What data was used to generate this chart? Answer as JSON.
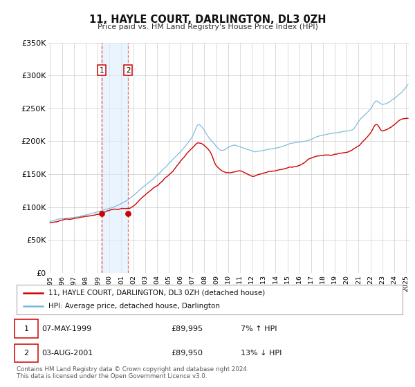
{
  "title": "11, HAYLE COURT, DARLINGTON, DL3 0ZH",
  "subtitle": "Price paid vs. HM Land Registry's House Price Index (HPI)",
  "ylim": [
    0,
    350000
  ],
  "yticks": [
    0,
    50000,
    100000,
    150000,
    200000,
    250000,
    300000,
    350000
  ],
  "ytick_labels": [
    "£0",
    "£50K",
    "£100K",
    "£150K",
    "£200K",
    "£250K",
    "£300K",
    "£350K"
  ],
  "xlim_start": 1994.8,
  "xlim_end": 2025.3,
  "xticks": [
    1995,
    1996,
    1997,
    1998,
    1999,
    2000,
    2001,
    2002,
    2003,
    2004,
    2005,
    2006,
    2007,
    2008,
    2009,
    2010,
    2011,
    2012,
    2013,
    2014,
    2015,
    2016,
    2017,
    2018,
    2019,
    2020,
    2021,
    2022,
    2023,
    2024,
    2025
  ],
  "sale1_date": 1999.35,
  "sale1_price": 89995,
  "sale2_date": 2001.58,
  "sale2_price": 89950,
  "hpi_color": "#7ab8d9",
  "property_color": "#cc0000",
  "shade_color": "#ddeeff",
  "grid_color": "#cccccc",
  "legend_label_property": "11, HAYLE COURT, DARLINGTON, DL3 0ZH (detached house)",
  "legend_label_hpi": "HPI: Average price, detached house, Darlington",
  "table_row1": [
    "1",
    "07-MAY-1999",
    "£89,995",
    "7% ↑ HPI"
  ],
  "table_row2": [
    "2",
    "03-AUG-2001",
    "£89,950",
    "13% ↓ HPI"
  ],
  "footer1": "Contains HM Land Registry data © Crown copyright and database right 2024.",
  "footer2": "This data is licensed under the Open Government Licence v3.0."
}
